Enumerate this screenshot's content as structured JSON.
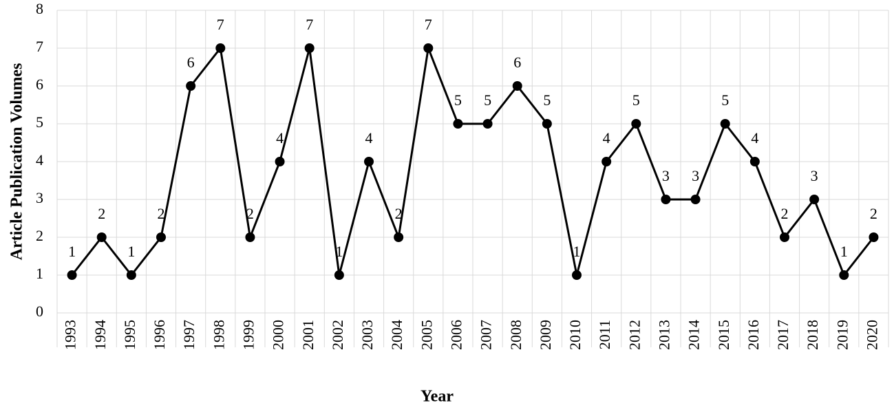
{
  "chart_data": {
    "type": "line",
    "y_label": "Article Publication Volumes",
    "x_label": "Year",
    "categories": [
      "1993",
      "1994",
      "1995",
      "1996",
      "1997",
      "1998",
      "1999",
      "2000",
      "2001",
      "2002",
      "2003",
      "2004",
      "2005",
      "2006",
      "2007",
      "2008",
      "2009",
      "2010",
      "2011",
      "2012",
      "2013",
      "2014",
      "2015",
      "2016",
      "2017",
      "2018",
      "2019",
      "2020"
    ],
    "values": [
      1,
      2,
      1,
      2,
      6,
      7,
      2,
      4,
      7,
      1,
      4,
      2,
      7,
      5,
      5,
      6,
      5,
      1,
      4,
      5,
      3,
      3,
      5,
      4,
      2,
      3,
      1,
      2
    ],
    "color": "#000000",
    "ylim": [
      0,
      8
    ],
    "yticks": [
      0,
      1,
      2,
      3,
      4,
      5,
      6,
      7,
      8
    ],
    "grid": true
  }
}
